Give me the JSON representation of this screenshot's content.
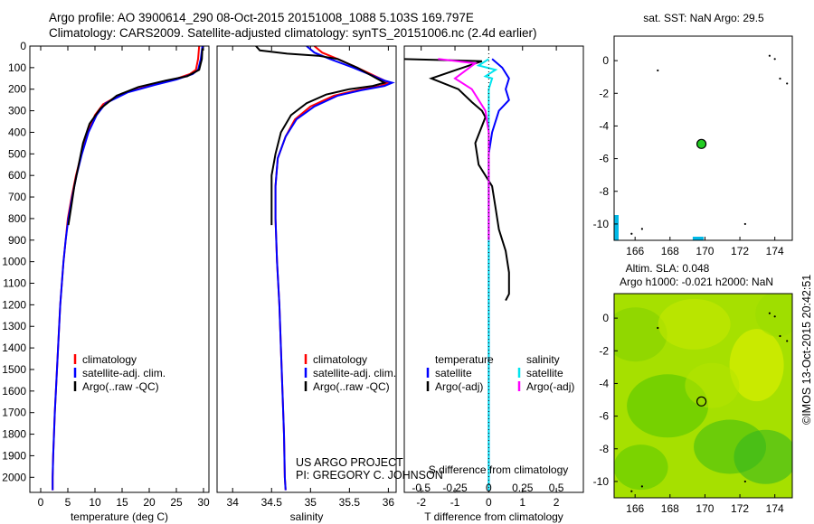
{
  "header": {
    "line1": "Argo profile: AO 3900614_290 08-Oct-2015 20151008_1088 5.103S 169.797E",
    "line2": "Climatology: CARS2009. Satellite-adjusted climatology: synTS_20151006.nc (2.4d earlier)"
  },
  "colors": {
    "climatology": "#ff0000",
    "satellite": "#0000ff",
    "argo": "#000000",
    "sal_satellite": "#00e5ee",
    "sal_argo": "#ff00ff",
    "map_marker": "#22cc22",
    "sla_field": "#a6e000",
    "coast": "#000000",
    "sst_bar": "#00b8e6"
  },
  "chart_data": [
    {
      "type": "line",
      "xlabel": "temperature (deg C)",
      "ylabel": "",
      "xlim": [
        -2,
        31
      ],
      "ylim": [
        2070,
        0
      ],
      "xticks": [
        0,
        5,
        10,
        15,
        20,
        25,
        30
      ],
      "yticks": [
        0,
        100,
        200,
        300,
        400,
        500,
        600,
        700,
        800,
        900,
        1000,
        1100,
        1200,
        1300,
        1400,
        1500,
        1600,
        1700,
        1800,
        1900,
        2000
      ],
      "legend": [
        "climatology",
        "satellite-adj. clim.",
        "Argo(..raw -QC)"
      ],
      "series": [
        {
          "name": "climatology",
          "color": "#ff0000",
          "points": [
            [
              29.2,
              0
            ],
            [
              29.0,
              60
            ],
            [
              28.6,
              110
            ],
            [
              27.5,
              130
            ],
            [
              24.0,
              160
            ],
            [
              20.0,
              185
            ],
            [
              15.0,
              220
            ],
            [
              11.5,
              270
            ],
            [
              10.0,
              320
            ],
            [
              8.7,
              400
            ],
            [
              7.5,
              500
            ],
            [
              6.5,
              600
            ],
            [
              5.7,
              700
            ],
            [
              5.0,
              800
            ],
            [
              4.6,
              900
            ],
            [
              4.2,
              1000
            ],
            [
              3.9,
              1100
            ],
            [
              3.6,
              1200
            ],
            [
              3.4,
              1300
            ],
            [
              3.2,
              1400
            ],
            [
              3.0,
              1500
            ],
            [
              2.8,
              1600
            ],
            [
              2.6,
              1700
            ],
            [
              2.45,
              1800
            ],
            [
              2.3,
              1900
            ],
            [
              2.2,
              2000
            ],
            [
              2.2,
              2060
            ]
          ]
        },
        {
          "name": "satellite-adj. clim.",
          "color": "#0000ff",
          "points": [
            [
              29.8,
              0
            ],
            [
              29.5,
              60
            ],
            [
              29.0,
              110
            ],
            [
              28.0,
              130
            ],
            [
              25.0,
              155
            ],
            [
              21.0,
              180
            ],
            [
              16.0,
              215
            ],
            [
              12.0,
              265
            ],
            [
              10.3,
              320
            ],
            [
              8.8,
              400
            ],
            [
              7.6,
              500
            ],
            [
              6.6,
              600
            ],
            [
              5.8,
              700
            ],
            [
              5.1,
              800
            ],
            [
              4.6,
              900
            ],
            [
              4.2,
              1000
            ],
            [
              3.9,
              1100
            ],
            [
              3.6,
              1200
            ],
            [
              3.4,
              1300
            ],
            [
              3.2,
              1400
            ],
            [
              3.0,
              1500
            ],
            [
              2.8,
              1600
            ],
            [
              2.6,
              1700
            ],
            [
              2.45,
              1800
            ],
            [
              2.3,
              1900
            ],
            [
              2.2,
              2000
            ],
            [
              2.2,
              2060
            ]
          ]
        },
        {
          "name": "Argo(..raw -QC)",
          "color": "#000000",
          "points": [
            [
              29.8,
              10
            ],
            [
              29.7,
              60
            ],
            [
              29.2,
              110
            ],
            [
              27.0,
              140
            ],
            [
              23.0,
              160
            ],
            [
              18.0,
              190
            ],
            [
              14.0,
              230
            ],
            [
              11.0,
              290
            ],
            [
              9.0,
              360
            ],
            [
              7.8,
              450
            ],
            [
              7.0,
              550
            ],
            [
              6.2,
              650
            ],
            [
              5.6,
              750
            ],
            [
              5.1,
              830
            ]
          ]
        }
      ]
    },
    {
      "type": "line",
      "xlabel": "salinity",
      "ylabel": "",
      "xlim": [
        33.8,
        36.1
      ],
      "ylim": [
        2070,
        0
      ],
      "xticks": [
        34,
        34.5,
        35,
        35.5,
        36
      ],
      "legend": [
        "climatology",
        "satellite-adj. clim.",
        "Argo(..raw -QC)"
      ],
      "annotation": [
        "US ARGO PROJECT",
        "PI: GREGORY C. JOHNSON"
      ],
      "series": [
        {
          "name": "climatology",
          "color": "#ff0000",
          "points": [
            [
              35.05,
              0
            ],
            [
              35.15,
              30
            ],
            [
              35.35,
              60
            ],
            [
              35.6,
              100
            ],
            [
              35.95,
              160
            ],
            [
              36.0,
              170
            ],
            [
              35.9,
              185
            ],
            [
              35.6,
              205
            ],
            [
              35.3,
              230
            ],
            [
              35.0,
              280
            ],
            [
              34.8,
              340
            ],
            [
              34.68,
              420
            ],
            [
              34.58,
              520
            ],
            [
              34.55,
              650
            ],
            [
              34.55,
              800
            ],
            [
              34.57,
              1000
            ],
            [
              34.6,
              1200
            ],
            [
              34.62,
              1400
            ],
            [
              34.64,
              1600
            ],
            [
              34.66,
              1800
            ],
            [
              34.67,
              2000
            ],
            [
              34.68,
              2060
            ]
          ]
        },
        {
          "name": "satellite-adj. clim.",
          "color": "#0000ff",
          "points": [
            [
              34.95,
              0
            ],
            [
              35.05,
              30
            ],
            [
              35.25,
              60
            ],
            [
              35.55,
              100
            ],
            [
              35.95,
              160
            ],
            [
              36.05,
              170
            ],
            [
              35.95,
              185
            ],
            [
              35.65,
              205
            ],
            [
              35.35,
              230
            ],
            [
              35.05,
              280
            ],
            [
              34.82,
              340
            ],
            [
              34.68,
              420
            ],
            [
              34.58,
              520
            ],
            [
              34.55,
              650
            ],
            [
              34.55,
              800
            ],
            [
              34.57,
              1000
            ],
            [
              34.6,
              1200
            ],
            [
              34.62,
              1400
            ],
            [
              34.64,
              1600
            ],
            [
              34.66,
              1800
            ],
            [
              34.67,
              2000
            ],
            [
              34.68,
              2060
            ]
          ]
        },
        {
          "name": "Argo(..raw -QC)",
          "color": "#000000",
          "points": [
            [
              34.3,
              0
            ],
            [
              34.35,
              20
            ],
            [
              34.7,
              35
            ],
            [
              35.1,
              45
            ],
            [
              35.35,
              60
            ],
            [
              35.6,
              100
            ],
            [
              35.9,
              160
            ],
            [
              35.95,
              170
            ],
            [
              35.8,
              185
            ],
            [
              35.5,
              200
            ],
            [
              35.2,
              225
            ],
            [
              34.95,
              265
            ],
            [
              34.75,
              320
            ],
            [
              34.62,
              400
            ],
            [
              34.55,
              500
            ],
            [
              34.5,
              600
            ],
            [
              34.5,
              700
            ],
            [
              34.5,
              830
            ]
          ]
        }
      ]
    },
    {
      "type": "line",
      "xlabel": "T difference from climatology",
      "title_top": "S difference from climatology",
      "xlim": [
        -2.5,
        2.8
      ],
      "ylim": [
        2070,
        0
      ],
      "xticks": [
        -2,
        -1,
        0,
        1,
        2
      ],
      "xticks_s": [
        -0.5,
        -0.25,
        0,
        0.25,
        0.5
      ],
      "legend": [
        "temperature",
        "satellite",
        "Argo(-adj)",
        "salinity",
        "satellite",
        "Argo(-adj)"
      ],
      "series": [
        {
          "name": "satellite",
          "color": "#0000ff",
          "points": [
            [
              0.1,
              60
            ],
            [
              0.4,
              100
            ],
            [
              0.6,
              150
            ],
            [
              0.5,
              200
            ],
            [
              0.6,
              250
            ],
            [
              0.3,
              300
            ],
            [
              0.1,
              400
            ],
            [
              0.0,
              500
            ],
            [
              0.0,
              800
            ],
            [
              0.0,
              2060
            ]
          ]
        },
        {
          "name": "Argo(-adj)",
          "color": "#000000",
          "points": [
            [
              -2.6,
              60
            ],
            [
              -0.2,
              70
            ],
            [
              -1.7,
              150
            ],
            [
              -0.9,
              200
            ],
            [
              -0.5,
              260
            ],
            [
              -0.2,
              300
            ],
            [
              -0.1,
              330
            ],
            [
              -0.4,
              450
            ],
            [
              -0.3,
              550
            ],
            [
              0.1,
              650
            ],
            [
              0.2,
              750
            ],
            [
              0.3,
              850
            ],
            [
              0.5,
              950
            ],
            [
              0.6,
              1050
            ],
            [
              0.6,
              1150
            ],
            [
              0.5,
              1180
            ]
          ]
        },
        {
          "name": "satellite",
          "color": "#00e5ee",
          "points": [
            [
              0.0,
              60
            ],
            [
              -0.3,
              90
            ],
            [
              0.2,
              110
            ],
            [
              -0.1,
              140
            ],
            [
              0.1,
              150
            ],
            [
              0.0,
              200
            ],
            [
              0.0,
              300
            ],
            [
              0.0,
              600
            ],
            [
              0.0,
              1050
            ],
            [
              0.0,
              2060
            ]
          ]
        },
        {
          "name": "Argo(-adj)",
          "color": "#ff00ff",
          "points": [
            [
              -1.5,
              60
            ],
            [
              -0.4,
              80
            ],
            [
              -1.0,
              150
            ],
            [
              -0.5,
              200
            ],
            [
              -0.1,
              300
            ],
            [
              0.0,
              400
            ],
            [
              0.0,
              900
            ]
          ]
        }
      ]
    },
    {
      "type": "scatter",
      "title": "sat. SST: NaN Argo: 29.5",
      "xlim": [
        164.8,
        175
      ],
      "ylim": [
        -11,
        1.5
      ],
      "xticks": [
        166,
        168,
        170,
        172,
        174
      ],
      "yticks": [
        0,
        -2,
        -4,
        -6,
        -8,
        -10
      ],
      "points": [
        {
          "x": 169.8,
          "y": -5.1
        }
      ]
    },
    {
      "type": "heatmap",
      "title": "Altim. SLA: 0.048",
      "subtitle": "Argo h1000: -0.021 h2000: NaN",
      "xlim": [
        164.8,
        175
      ],
      "ylim": [
        -11,
        1.5
      ],
      "xticks": [
        166,
        168,
        170,
        172,
        174
      ],
      "yticks": [
        0,
        -2,
        -4,
        -6,
        -8,
        -10
      ],
      "points": [
        {
          "x": 169.8,
          "y": -5.1
        }
      ]
    }
  ],
  "side_label": "©IMOS 13-Oct-2015 20:42:51"
}
